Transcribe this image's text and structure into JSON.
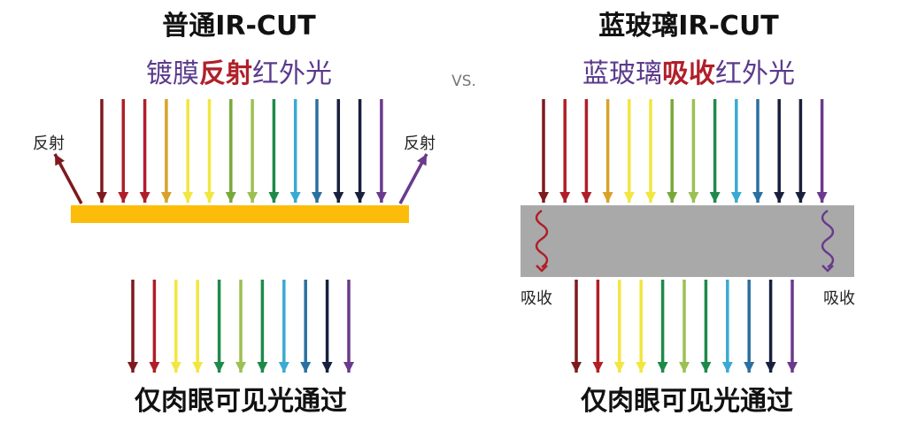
{
  "left": {
    "title": "普通IR-CUT",
    "subtitle": [
      {
        "text": "镀膜",
        "color": "#5b3a8c",
        "bold": false
      },
      {
        "text": "反射",
        "color": "#b0202a",
        "bold": true
      },
      {
        "text": "红外光",
        "color": "#5b3a8c",
        "bold": false
      }
    ],
    "side_label": "反射",
    "bottom": "仅肉眼可见光通过",
    "filter_color": "#fbbd0a"
  },
  "right": {
    "title": "蓝玻璃IR-CUT",
    "subtitle": [
      {
        "text": "蓝玻璃",
        "color": "#5b3a8c",
        "bold": false
      },
      {
        "text": "吸收",
        "color": "#b0202a",
        "bold": true
      },
      {
        "text": "红外光",
        "color": "#5b3a8c",
        "bold": false
      }
    ],
    "side_label": "吸收",
    "bottom": "仅肉眼可见光通过",
    "filter_color": "#a9a9a9"
  },
  "vs": "VS.",
  "incoming_colors": [
    "#7e1a1e",
    "#b01e28",
    "#b01e28",
    "#d8a22a",
    "#f2e640",
    "#f2e640",
    "#78a83a",
    "#9cc052",
    "#1e8a4a",
    "#3aaad2",
    "#2a70a0",
    "#18203e",
    "#18203e",
    "#6a3a8c"
  ],
  "passed_colors": [
    "#7e1a1e",
    "#b01e28",
    "#f2e640",
    "#f2e640",
    "#1e8a4a",
    "#9cc052",
    "#1e8a4a",
    "#3aaad2",
    "#2a70a0",
    "#18203e",
    "#6a3a8c"
  ]
}
